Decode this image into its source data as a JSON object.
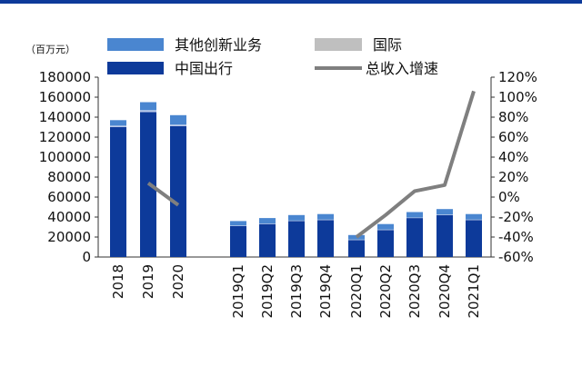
{
  "chart_data": {
    "type": "bar",
    "stacked": true,
    "unit_label": "（百万元）",
    "categories": [
      "2018",
      "2019",
      "2020",
      "2019Q1",
      "2019Q2",
      "2019Q3",
      "2019Q4",
      "2020Q1",
      "2020Q2",
      "2020Q3",
      "2020Q4",
      "2021Q1"
    ],
    "series": [
      {
        "name": "中国出行",
        "axis": "left",
        "kind": "bar",
        "color": "#0d3a9a",
        "values": [
          130000,
          145000,
          131000,
          31000,
          33000,
          36000,
          37000,
          17000,
          27000,
          39000,
          42000,
          37000
        ]
      },
      {
        "name": "国际",
        "axis": "left",
        "kind": "bar",
        "color": "#b8c7e8",
        "values": [
          1500,
          2000,
          1500,
          500,
          500,
          500,
          500,
          500,
          500,
          500,
          500,
          500
        ]
      },
      {
        "name": "其他创新业务",
        "axis": "left",
        "kind": "bar",
        "color": "#4a86d0",
        "values": [
          5500,
          8000,
          9500,
          4500,
          5500,
          5500,
          5500,
          4500,
          5500,
          5500,
          5500,
          5500
        ]
      },
      {
        "name": "总收入增速",
        "axis": "right",
        "kind": "line",
        "color": "#7f7f7f",
        "values": [
          null,
          14,
          -8,
          null,
          null,
          null,
          null,
          -40,
          -18,
          6,
          12,
          106
        ]
      }
    ],
    "yleft": {
      "min": 0,
      "max": 180000,
      "step": 20000
    },
    "yright": {
      "min": -60,
      "max": 120,
      "step": 20,
      "suffix": "%"
    },
    "legend_position": "top"
  }
}
